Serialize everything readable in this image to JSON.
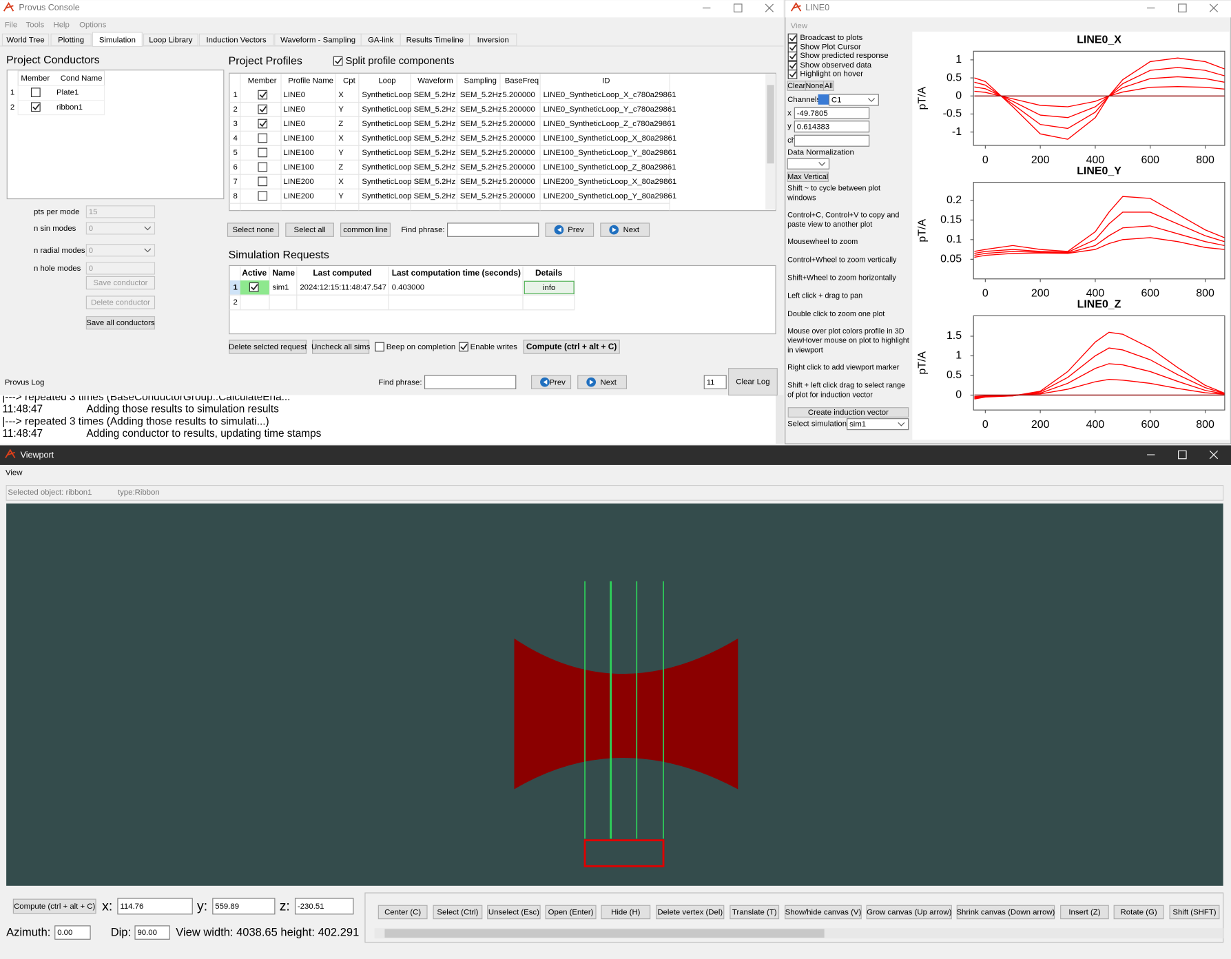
{
  "console": {
    "title": "Provus Console",
    "menu": [
      "File",
      "Tools",
      "Help",
      "Options"
    ],
    "tabs": [
      "World Tree",
      "Plotting",
      "Simulation",
      "Loop Library",
      "Induction Vectors",
      "Waveform - Sampling",
      "GA-link",
      "Results Timeline",
      "Inversion"
    ],
    "active_tab": 2,
    "conductors": {
      "title": "Project Conductors",
      "columns": [
        "Member",
        "Cond Name"
      ],
      "rows": [
        {
          "index": "1",
          "member": false,
          "name": "Plate1"
        },
        {
          "index": "2",
          "member": true,
          "name": "ribbon1"
        }
      ]
    },
    "conductor_form": {
      "fields": [
        {
          "label": "pts per mode",
          "value": "15"
        },
        {
          "label": "n sin modes",
          "value": "0"
        },
        {
          "label": "n radial modes",
          "value": "0"
        },
        {
          "label": "n hole modes",
          "value": "0"
        }
      ],
      "buttons": [
        "Save conductor",
        "Delete conductor",
        "Save all conductors"
      ]
    },
    "profiles": {
      "title": "Project Profiles",
      "split_label": "Split profile components",
      "split": true,
      "columns": [
        "Member",
        "Profile Name",
        "Cpt",
        "Loop",
        "Waveform",
        "Sampling",
        "BaseFreq",
        "ID"
      ],
      "rows": [
        [
          "1",
          true,
          "LINE0",
          "X",
          "SyntheticLoop",
          "SEM_5.2Hz",
          "SEM_5.2Hz",
          "5.200000",
          "LINE0_SyntheticLoop_X_c780a29861"
        ],
        [
          "2",
          true,
          "LINE0",
          "Y",
          "SyntheticLoop",
          "SEM_5.2Hz",
          "SEM_5.2Hz",
          "5.200000",
          "LINE0_SyntheticLoop_Y_c780a29861"
        ],
        [
          "3",
          true,
          "LINE0",
          "Z",
          "SyntheticLoop",
          "SEM_5.2Hz",
          "SEM_5.2Hz",
          "5.200000",
          "LINE0_SyntheticLoop_Z_c780a29861"
        ],
        [
          "4",
          false,
          "LINE100",
          "X",
          "SyntheticLoop",
          "SEM_5.2Hz",
          "SEM_5.2Hz",
          "5.200000",
          "LINE100_SyntheticLoop_X_80a29861"
        ],
        [
          "5",
          false,
          "LINE100",
          "Y",
          "SyntheticLoop",
          "SEM_5.2Hz",
          "SEM_5.2Hz",
          "5.200000",
          "LINE100_SyntheticLoop_Y_80a29861"
        ],
        [
          "6",
          false,
          "LINE100",
          "Z",
          "SyntheticLoop",
          "SEM_5.2Hz",
          "SEM_5.2Hz",
          "5.200000",
          "LINE100_SyntheticLoop_Z_80a29861"
        ],
        [
          "7",
          false,
          "LINE200",
          "X",
          "SyntheticLoop",
          "SEM_5.2Hz",
          "SEM_5.2Hz",
          "5.200000",
          "LINE200_SyntheticLoop_X_80a29861"
        ],
        [
          "8",
          false,
          "LINE200",
          "Y",
          "SyntheticLoop",
          "SEM_5.2Hz",
          "SEM_5.2Hz",
          "5.200000",
          "LINE200_SyntheticLoop_Y_80a29861"
        ]
      ],
      "buttons": [
        "Select none",
        "Select all",
        "common line"
      ],
      "find_label": "Find phrase:",
      "prev": "Prev",
      "next": "Next"
    },
    "requests": {
      "title": "Simulation Requests",
      "columns": [
        "Active",
        "Name",
        "Last computed",
        "Last computation time (seconds)",
        "Details"
      ],
      "rows": [
        [
          "1",
          true,
          "sim1",
          "2024:12:15:11:48:47.547",
          "0.403000",
          "info"
        ],
        [
          "2"
        ]
      ],
      "delete": "Delete selcted request",
      "uncheck": "Uncheck all sims",
      "beep_label": "Beep on completion",
      "beep": false,
      "writes_label": "Enable writes",
      "writes": true,
      "compute": "Compute (ctrl + alt + C)"
    },
    "log": {
      "title": "Provus Log",
      "find_label": "Find phrase:",
      "prev": "Prev",
      "next": "Next",
      "count": "11",
      "clear": "Clear Log",
      "lines": [
        {
          "text": "|---> repeated 3 times (BaseConductorGroup::CalculateEna..."
        },
        {
          "time": "11:48:47",
          "text": "Adding those results to simulation results"
        },
        {
          "text": "|---> repeated 3 times (Adding those results to simulati...)"
        },
        {
          "time": "11:48:47",
          "text": "Adding conductor to results, updating time stamps"
        }
      ]
    }
  },
  "line0_window": {
    "title": "LINE0",
    "menu": "View",
    "options": [
      {
        "label": "Broadcast to plots",
        "checked": true
      },
      {
        "label": "Show Plot Cursor",
        "checked": true
      },
      {
        "label": "Show predicted response",
        "checked": true
      },
      {
        "label": "Show observed data",
        "checked": true
      },
      {
        "label": "Highlight on hover",
        "checked": true
      }
    ],
    "buttons": [
      "Clear",
      "None",
      "All"
    ],
    "channels_label": "Channels",
    "channel_color": "#3a7bd5",
    "channel": "C1",
    "x_label": "x",
    "x_value": "-49.7805",
    "y_label": "y",
    "y_value": "0.614383",
    "ch_label": "ch",
    "normalization_label": "Data Normalization",
    "max_vertical": "Max Vertical",
    "help": [
      [
        "Shift ~ to cycle between plot",
        "windows"
      ],
      [
        "Control+C, Control+V to copy and",
        "paste view to another plot"
      ],
      [
        "Mousewheel to zoom"
      ],
      [
        "Control+Wheel to zoom vertically"
      ],
      [
        "Shift+Wheel to zoom horizontally"
      ],
      [
        "Left click + drag to pan"
      ],
      [
        "Double click to zoom one plot"
      ],
      [
        "Mouse over plot colors profile in 3D",
        "viewHover mouse on plot to highlight",
        "in viewport"
      ],
      [
        "Right click to add viewport marker"
      ],
      [
        "Shift + left click drag to select range",
        "of plot for induction vector"
      ]
    ],
    "create": "Create induction vector",
    "select_label": "Select simulation:",
    "select_value": "sim1",
    "plots": [
      {
        "type": "line",
        "title": "LINE0_X",
        "ylabel": "pT/A",
        "xlim": [
          -43,
          871
        ],
        "ylim": [
          -1.37,
          1.24
        ],
        "xticks": [
          0,
          200,
          400,
          600,
          800
        ],
        "yticks": [
          -1,
          -0.5,
          0,
          0.5,
          1
        ],
        "x": [
          -40,
          0,
          100,
          200,
          300,
          400,
          450,
          500,
          600,
          700,
          800,
          870
        ],
        "series": [
          {
            "color": "#ff0000",
            "values": [
              0.5,
              0.4,
              -0.3,
              -1.05,
              -1.2,
              -0.6,
              0,
              0.45,
              0.95,
              1.05,
              0.95,
              0.75
            ]
          },
          {
            "color": "#ff0000",
            "values": [
              0.38,
              0.3,
              -0.23,
              -0.79,
              -0.9,
              -0.45,
              0,
              0.34,
              0.71,
              0.79,
              0.71,
              0.56
            ]
          },
          {
            "color": "#ff0000",
            "values": [
              0.25,
              0.2,
              -0.15,
              -0.53,
              -0.6,
              -0.3,
              0,
              0.23,
              0.48,
              0.53,
              0.48,
              0.38
            ]
          },
          {
            "color": "#ff0000",
            "values": [
              0.13,
              0.1,
              -0.08,
              -0.26,
              -0.3,
              -0.15,
              0,
              0.11,
              0.24,
              0.26,
              0.24,
              0.19
            ]
          },
          {
            "color": "#8b0000",
            "values": [
              0,
              0,
              0,
              0,
              0,
              0,
              0,
              0,
              0,
              0,
              0,
              0
            ]
          }
        ]
      },
      {
        "type": "line",
        "title": "LINE0_Y",
        "ylabel": "pT/A",
        "xlim": [
          -43,
          871
        ],
        "ylim": [
          0,
          0.246
        ],
        "xticks": [
          0,
          200,
          400,
          600,
          800
        ],
        "yticks": [
          0.05,
          0.1,
          0.15,
          0.2
        ],
        "x": [
          -40,
          0,
          100,
          200,
          300,
          400,
          450,
          500,
          600,
          700,
          800,
          870
        ],
        "series": [
          {
            "color": "#ff0000",
            "values": [
              0.07,
              0.075,
              0.085,
              0.075,
              0.07,
              0.12,
              0.17,
              0.21,
              0.205,
              0.165,
              0.125,
              0.105
            ]
          },
          {
            "color": "#ff0000",
            "values": [
              0.065,
              0.07,
              0.075,
              0.07,
              0.068,
              0.1,
              0.14,
              0.17,
              0.17,
              0.14,
              0.11,
              0.095
            ]
          },
          {
            "color": "#ff0000",
            "values": [
              0.06,
              0.065,
              0.07,
              0.068,
              0.066,
              0.085,
              0.11,
              0.13,
              0.135,
              0.115,
              0.095,
              0.085
            ]
          },
          {
            "color": "#ff0000",
            "values": [
              0.055,
              0.06,
              0.065,
              0.066,
              0.065,
              0.075,
              0.09,
              0.1,
              0.105,
              0.095,
              0.08,
              0.075
            ]
          }
        ]
      },
      {
        "type": "line",
        "title": "LINE0_Z",
        "ylabel": "pT/A",
        "xlim": [
          -43,
          871
        ],
        "ylim": [
          -0.38,
          2.02
        ],
        "xticks": [
          0,
          200,
          400,
          600,
          800
        ],
        "yticks": [
          0,
          0.5,
          1,
          1.5
        ],
        "x": [
          -40,
          0,
          100,
          200,
          300,
          400,
          450,
          500,
          600,
          700,
          800,
          870
        ],
        "series": [
          {
            "color": "#ff0000",
            "values": [
              -0.1,
              -0.05,
              -0.02,
              0.1,
              0.6,
              1.35,
              1.6,
              1.55,
              1.2,
              0.7,
              0.25,
              0.05
            ]
          },
          {
            "color": "#ff0000",
            "values": [
              -0.08,
              -0.04,
              -0.02,
              0.08,
              0.45,
              1.0,
              1.2,
              1.15,
              0.9,
              0.52,
              0.19,
              0.04
            ]
          },
          {
            "color": "#ff0000",
            "values": [
              -0.06,
              -0.03,
              -0.01,
              0.05,
              0.3,
              0.68,
              0.8,
              0.77,
              0.6,
              0.35,
              0.12,
              0.03
            ]
          },
          {
            "color": "#ff0000",
            "values": [
              -0.04,
              -0.02,
              0,
              0.03,
              0.15,
              0.34,
              0.4,
              0.38,
              0.3,
              0.17,
              0.06,
              0.02
            ]
          },
          {
            "color": "#8b0000",
            "values": [
              0,
              0,
              0,
              0,
              0,
              0,
              0,
              0,
              0,
              0,
              0,
              0
            ]
          }
        ]
      }
    ]
  },
  "viewport": {
    "title": "Viewport",
    "menu": "View",
    "selected": "Selected object: ribbon1",
    "type": "type:Ribbon",
    "compute": "Compute (ctrl + alt + C)",
    "x_label": "x:",
    "x": "114.76",
    "y_label": "y:",
    "y": "559.89",
    "z_label": "z:",
    "z": "-230.51",
    "azimuth_label": "Azimuth:",
    "azimuth": "0.00",
    "dip_label": "Dip:",
    "dip": "90.00",
    "view_text": "View width: 4038.65 height: 402.291",
    "buttons": [
      "Center (C)",
      "Select (Ctrl)",
      "Unselect (Esc)",
      "Open (Enter)",
      "Hide (H)",
      "Delete vertex (Del)",
      "Translate (T)",
      "Show/hide canvas (V)",
      "Grow canvas (Up arrow)",
      "Shrink canvas (Down arrow)",
      "Insert (Z)",
      "Rotate (G)",
      "Shift (SHFT)"
    ]
  }
}
